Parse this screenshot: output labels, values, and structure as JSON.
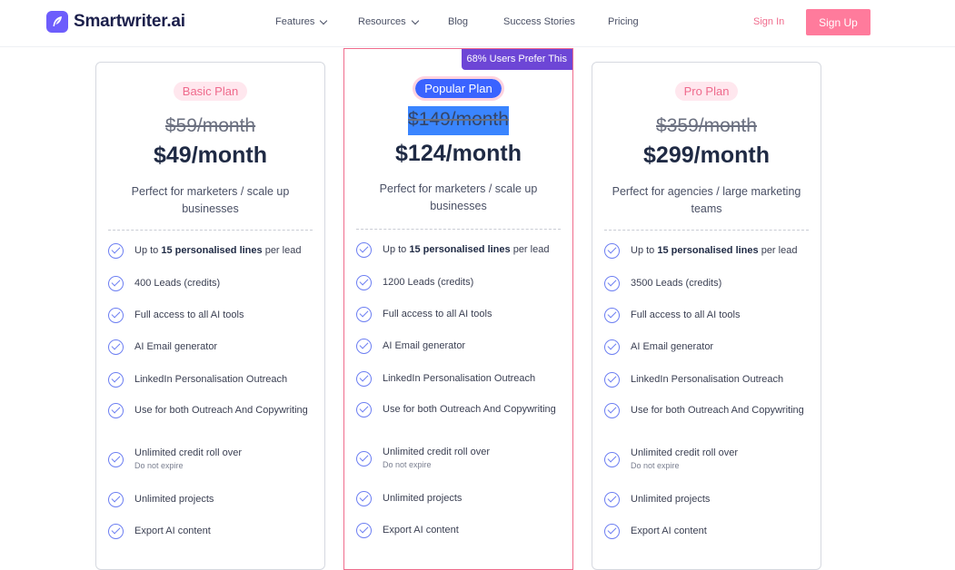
{
  "brand": {
    "name": "Smartwriter.ai",
    "logo_icon": "feather-icon",
    "accent": "#6d5dfc"
  },
  "nav": {
    "items": [
      {
        "label": "Features",
        "has_dropdown": true
      },
      {
        "label": "Resources",
        "has_dropdown": true
      },
      {
        "label": "Blog",
        "has_dropdown": false
      },
      {
        "label": "Success Stories",
        "has_dropdown": false
      },
      {
        "label": "Pricing",
        "has_dropdown": false
      }
    ],
    "sign_in": "Sign In",
    "sign_up": "Sign Up"
  },
  "colors": {
    "pink": "#f06b8c",
    "signup_bg": "#ff7b9c",
    "purple_ribbon": "#6d46d6",
    "check": "#6d7ff2"
  },
  "plans": [
    {
      "badge": "Basic Plan",
      "old_price": "$59/month",
      "price": "$49/month",
      "description": "Perfect for marketers / scale up businesses",
      "features": [
        {
          "pre": "Up to ",
          "bold": "15 personalised lines",
          "post": " per lead",
          "sub": ""
        },
        {
          "pre": "400 Leads (credits)",
          "bold": "",
          "post": "",
          "sub": ""
        },
        {
          "pre": "Full access to all AI tools",
          "bold": "",
          "post": "",
          "sub": ""
        },
        {
          "pre": "AI Email generator",
          "bold": "",
          "post": "",
          "sub": ""
        },
        {
          "pre": "LinkedIn Personalisation Outreach",
          "bold": "",
          "post": "",
          "sub": ""
        },
        {
          "pre": "Use for both Outreach And Copywriting",
          "bold": "",
          "post": "",
          "sub": ""
        },
        {
          "pre": "Unlimited credit roll over",
          "bold": "",
          "post": "",
          "sub": "Do not expire"
        },
        {
          "pre": "Unlimited projects",
          "bold": "",
          "post": "",
          "sub": ""
        },
        {
          "pre": "Export AI content",
          "bold": "",
          "post": "",
          "sub": ""
        }
      ]
    },
    {
      "badge": "Popular Plan",
      "ribbon": "68% Users Prefer This",
      "old_price": "$149/month",
      "price": "$124/month",
      "description": "Perfect for marketers / scale up businesses",
      "features": [
        {
          "pre": "Up to ",
          "bold": "15 personalised lines",
          "post": " per lead",
          "sub": ""
        },
        {
          "pre": "1200 Leads (credits)",
          "bold": "",
          "post": "",
          "sub": ""
        },
        {
          "pre": "Full access to all AI tools",
          "bold": "",
          "post": "",
          "sub": ""
        },
        {
          "pre": "AI Email generator",
          "bold": "",
          "post": "",
          "sub": ""
        },
        {
          "pre": "LinkedIn Personalisation Outreach",
          "bold": "",
          "post": "",
          "sub": ""
        },
        {
          "pre": "Use for both Outreach And Copywriting",
          "bold": "",
          "post": "",
          "sub": ""
        },
        {
          "pre": "Unlimited credit roll over",
          "bold": "",
          "post": "",
          "sub": "Do not expire"
        },
        {
          "pre": "Unlimited projects",
          "bold": "",
          "post": "",
          "sub": ""
        },
        {
          "pre": "Export AI content",
          "bold": "",
          "post": "",
          "sub": ""
        }
      ]
    },
    {
      "badge": "Pro Plan",
      "old_price": "$359/month",
      "price": "$299/month",
      "description": "Perfect for agencies / large marketing teams",
      "features": [
        {
          "pre": "Up to ",
          "bold": "15 personalised lines",
          "post": " per lead",
          "sub": ""
        },
        {
          "pre": "3500 Leads (credits)",
          "bold": "",
          "post": "",
          "sub": ""
        },
        {
          "pre": "Full access to all AI tools",
          "bold": "",
          "post": "",
          "sub": ""
        },
        {
          "pre": "AI Email generator",
          "bold": "",
          "post": "",
          "sub": ""
        },
        {
          "pre": "LinkedIn Personalisation Outreach",
          "bold": "",
          "post": "",
          "sub": ""
        },
        {
          "pre": "Use for both Outreach And Copywriting",
          "bold": "",
          "post": "",
          "sub": ""
        },
        {
          "pre": "Unlimited credit roll over",
          "bold": "",
          "post": "",
          "sub": "Do not expire"
        },
        {
          "pre": "Unlimited projects",
          "bold": "",
          "post": "",
          "sub": ""
        },
        {
          "pre": "Export AI content",
          "bold": "",
          "post": "",
          "sub": ""
        }
      ]
    }
  ]
}
